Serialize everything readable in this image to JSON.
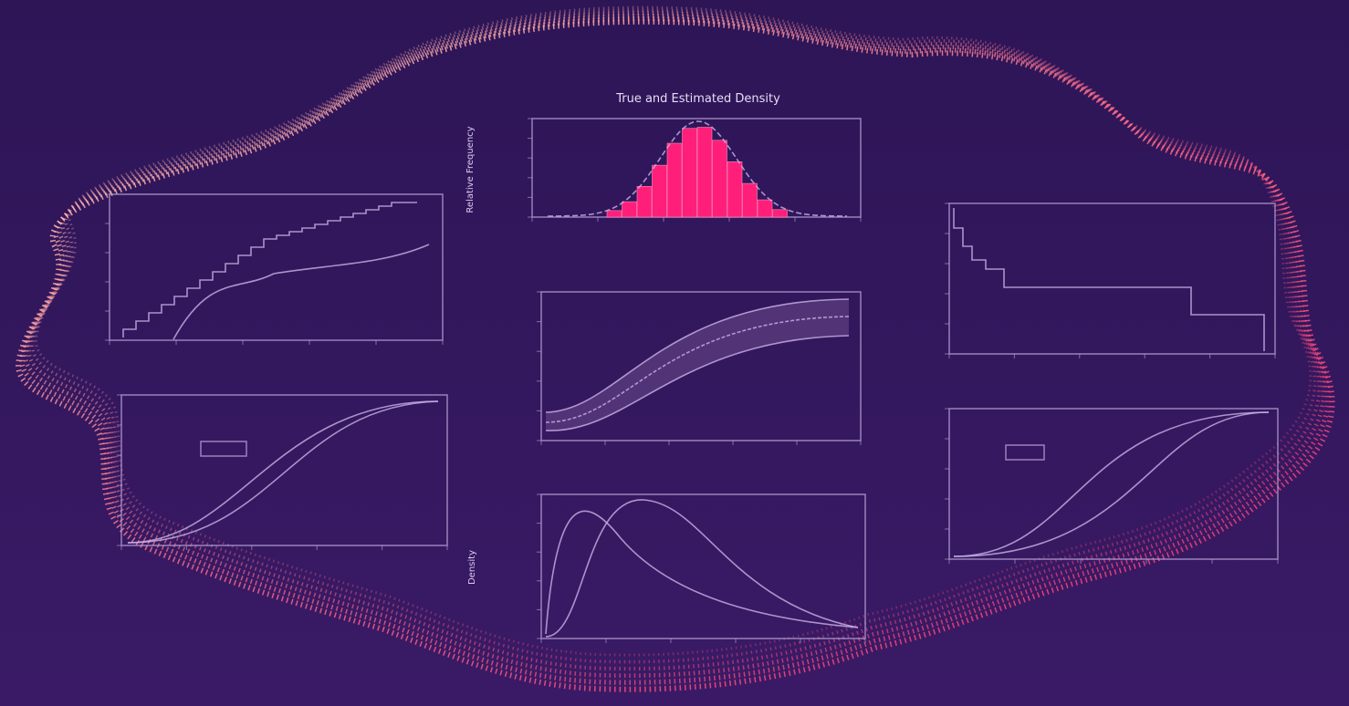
{
  "title": "True and Estimated Density",
  "histogram_y_label": "Relative Frequency",
  "density_y_label": "Density"
}
